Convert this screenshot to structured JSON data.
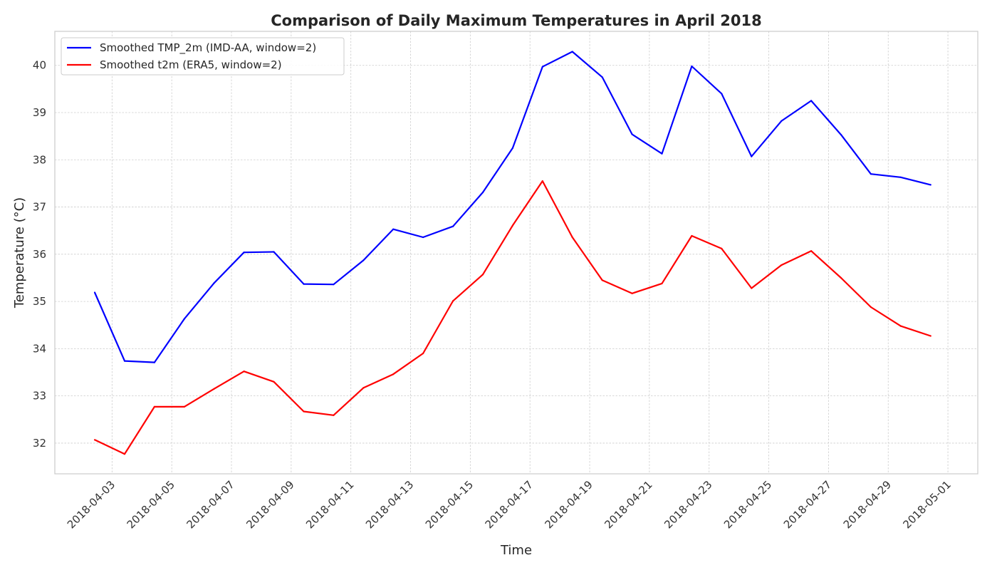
{
  "chart_data": {
    "type": "line",
    "title": "Comparison of Daily Maximum Temperatures in April 2018",
    "xlabel": "Time",
    "ylabel": "Temperature (°C)",
    "x": [
      "2018-04-02",
      "2018-04-03",
      "2018-04-04",
      "2018-04-05",
      "2018-04-06",
      "2018-04-07",
      "2018-04-08",
      "2018-04-09",
      "2018-04-10",
      "2018-04-11",
      "2018-04-12",
      "2018-04-13",
      "2018-04-14",
      "2018-04-15",
      "2018-04-16",
      "2018-04-17",
      "2018-04-18",
      "2018-04-19",
      "2018-04-20",
      "2018-04-21",
      "2018-04-22",
      "2018-04-23",
      "2018-04-24",
      "2018-04-25",
      "2018-04-26",
      "2018-04-27",
      "2018-04-28",
      "2018-04-29",
      "2018-04-30"
    ],
    "x_tick_labels": [
      "2018-04-03",
      "2018-04-05",
      "2018-04-07",
      "2018-04-09",
      "2018-04-11",
      "2018-04-13",
      "2018-04-15",
      "2018-04-17",
      "2018-04-19",
      "2018-04-21",
      "2018-04-23",
      "2018-04-25",
      "2018-04-27",
      "2018-04-29",
      "2018-05-01"
    ],
    "xlim": [
      "2018-04-01T02:00",
      "2018-05-02T00:00"
    ],
    "ylim": [
      31.35,
      40.72
    ],
    "y_ticks": [
      32,
      33,
      34,
      35,
      36,
      37,
      38,
      39,
      40
    ],
    "grid": true,
    "legend_position": "top-left",
    "series": [
      {
        "name": "Smoothed TMP_2m (IMD-AA, window=2)",
        "color": "#0000ff",
        "values": [
          35.19,
          33.74,
          33.71,
          34.63,
          35.39,
          36.04,
          36.05,
          35.37,
          35.36,
          35.87,
          36.53,
          36.36,
          36.59,
          37.31,
          38.25,
          39.97,
          40.29,
          39.75,
          38.54,
          38.13,
          39.98,
          39.4,
          38.07,
          38.82,
          39.25,
          38.53,
          37.7,
          37.63,
          37.47
        ]
      },
      {
        "name": "Smoothed t2m (ERA5, window=2)",
        "color": "#ff0000",
        "values": [
          32.07,
          31.77,
          32.77,
          32.77,
          33.15,
          33.52,
          33.3,
          32.67,
          32.59,
          33.17,
          33.46,
          33.9,
          35.01,
          35.57,
          36.61,
          37.55,
          36.36,
          35.45,
          35.17,
          35.38,
          36.39,
          36.12,
          35.28,
          35.77,
          36.07,
          35.5,
          34.88,
          34.48,
          34.27
        ]
      }
    ]
  }
}
